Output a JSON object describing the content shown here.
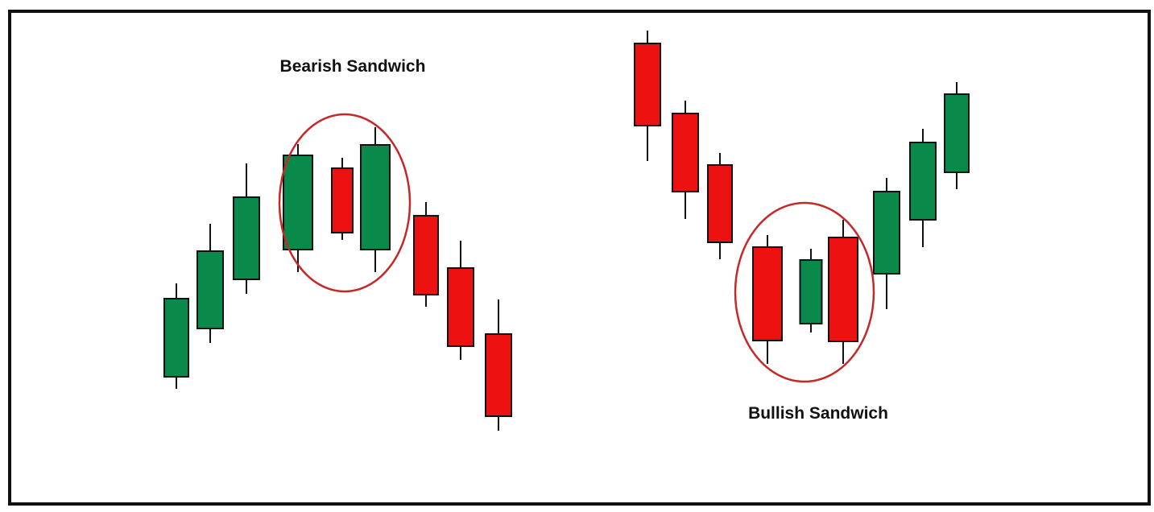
{
  "diagram": {
    "colors": {
      "bullish": "#0a8a4a",
      "bearish": "#ee1111",
      "outline": "#111111",
      "highlight": "#c62828",
      "background": "#ffffff"
    },
    "patterns": [
      {
        "label": "Bearish Sandwich",
        "highlight_group": "candle-3-to-5",
        "candles": [
          {
            "direction": "up"
          },
          {
            "direction": "up"
          },
          {
            "direction": "up"
          },
          {
            "direction": "up"
          },
          {
            "direction": "down"
          },
          {
            "direction": "up"
          },
          {
            "direction": "down"
          },
          {
            "direction": "down"
          },
          {
            "direction": "down"
          }
        ]
      },
      {
        "label": "Bullish Sandwich",
        "highlight_group": "candle-3-to-5",
        "candles": [
          {
            "direction": "down"
          },
          {
            "direction": "down"
          },
          {
            "direction": "down"
          },
          {
            "direction": "down"
          },
          {
            "direction": "up"
          },
          {
            "direction": "down"
          },
          {
            "direction": "up"
          },
          {
            "direction": "up"
          },
          {
            "direction": "up"
          }
        ]
      }
    ]
  }
}
